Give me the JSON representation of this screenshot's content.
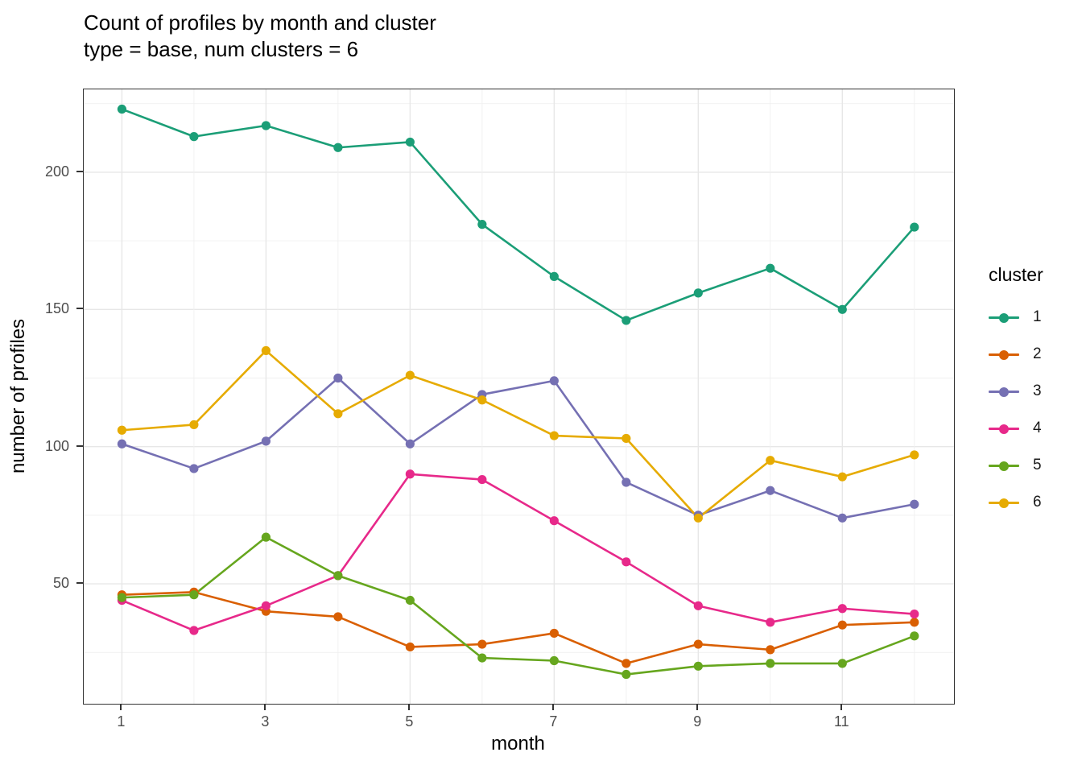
{
  "title": "Count of profiles by month and cluster",
  "subtitle": "type = base, num clusters = 6",
  "chart_data": {
    "type": "line",
    "title": "Count of profiles by month and cluster",
    "subtitle": "type = base, num clusters = 6",
    "xlabel": "month",
    "ylabel": "number of profiles",
    "legend_title": "cluster",
    "legend_position": "right",
    "grid": "on",
    "x": [
      1,
      2,
      3,
      4,
      5,
      6,
      7,
      8,
      9,
      10,
      11,
      12
    ],
    "x_ticks": [
      1,
      3,
      5,
      7,
      9,
      11
    ],
    "y_ticks": [
      50,
      100,
      150,
      200
    ],
    "xlim": [
      0.47,
      12.55
    ],
    "ylim": [
      6.3,
      230.2
    ],
    "series": [
      {
        "name": "1",
        "color": "#1B9E77",
        "values": [
          223,
          213,
          217,
          209,
          211,
          181,
          162,
          146,
          156,
          165,
          150,
          180
        ]
      },
      {
        "name": "2",
        "color": "#D95F02",
        "values": [
          46,
          47,
          40,
          38,
          27,
          28,
          32,
          21,
          28,
          26,
          35,
          36
        ]
      },
      {
        "name": "3",
        "color": "#7570B3",
        "values": [
          101,
          92,
          102,
          125,
          101,
          119,
          124,
          87,
          75,
          84,
          74,
          79
        ]
      },
      {
        "name": "4",
        "color": "#E7298A",
        "values": [
          44,
          33,
          42,
          53,
          90,
          88,
          73,
          58,
          42,
          36,
          41,
          39
        ]
      },
      {
        "name": "5",
        "color": "#66A61E",
        "values": [
          45,
          46,
          67,
          53,
          44,
          23,
          22,
          17,
          20,
          21,
          21,
          31
        ]
      },
      {
        "name": "6",
        "color": "#E6AB02",
        "values": [
          106,
          108,
          135,
          112,
          126,
          117,
          104,
          103,
          74,
          95,
          89,
          97
        ]
      }
    ]
  },
  "style": {
    "grid_major_color": "#E7E7E7",
    "grid_minor_color": "#F0F0F0",
    "panel_border_color": "#333333",
    "tick_color": "#333333",
    "axis_text_color": "#4D4D4D",
    "title_color": "#000000"
  }
}
